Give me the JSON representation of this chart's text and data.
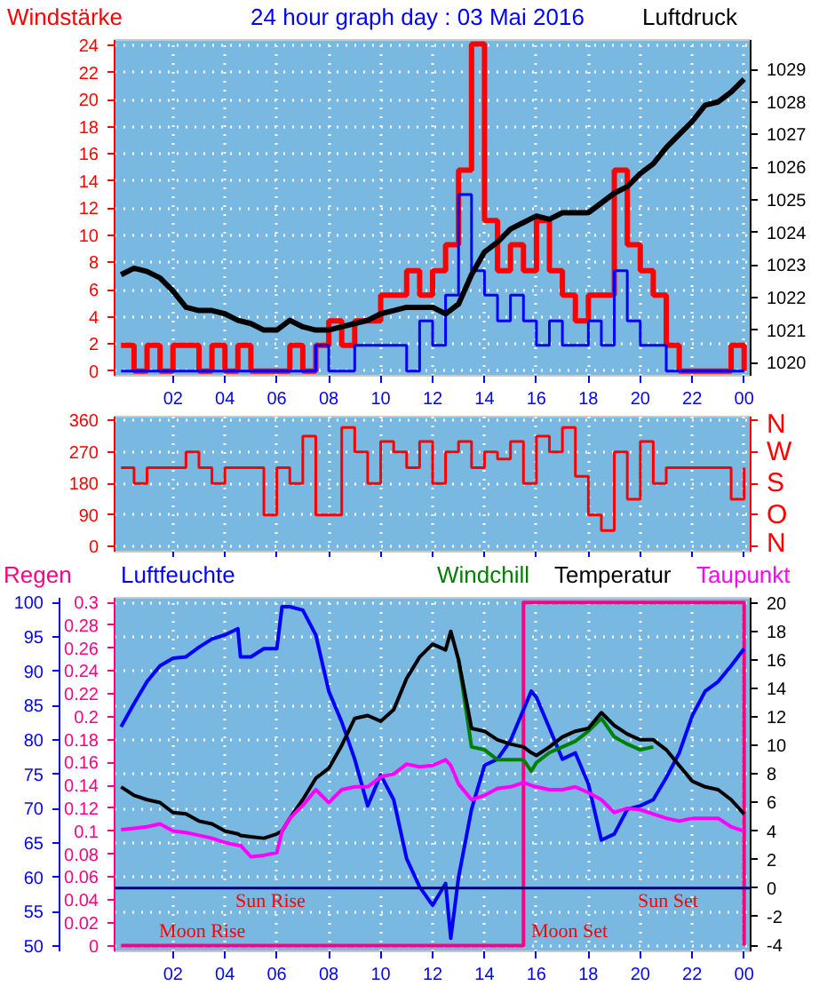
{
  "chart_data": [
    {
      "type": "step",
      "title": "24 hour graph day : 03 Mai 2016",
      "ylabel": "Windstärke",
      "y2label": "Luftdruck",
      "x": [
        "2016-05-03T00:00",
        "2016-05-03T00:30",
        "2016-05-03T01:00",
        "2016-05-03T01:30",
        "2016-05-03T02:00",
        "2016-05-03T02:30",
        "2016-05-03T03:00",
        "2016-05-03T03:30",
        "2016-05-03T04:00",
        "2016-05-03T04:30",
        "2016-05-03T05:00",
        "2016-05-03T05:30",
        "2016-05-03T06:00",
        "2016-05-03T06:30",
        "2016-05-03T07:00",
        "2016-05-03T07:30",
        "2016-05-03T08:00",
        "2016-05-03T08:30",
        "2016-05-03T09:00",
        "2016-05-03T09:30",
        "2016-05-03T10:00",
        "2016-05-03T10:30",
        "2016-05-03T11:00",
        "2016-05-03T11:30",
        "2016-05-03T12:00",
        "2016-05-03T12:30",
        "2016-05-03T13:00",
        "2016-05-03T13:30",
        "2016-05-03T14:00",
        "2016-05-03T14:30",
        "2016-05-03T15:00",
        "2016-05-03T15:30",
        "2016-05-03T16:00",
        "2016-05-03T16:30",
        "2016-05-03T17:00",
        "2016-05-03T17:30",
        "2016-05-03T18:00",
        "2016-05-03T18:30",
        "2016-05-03T19:00",
        "2016-05-03T19:30",
        "2016-05-03T20:00",
        "2016-05-03T20:30",
        "2016-05-03T21:00",
        "2016-05-03T21:30",
        "2016-05-03T22:00",
        "2016-05-03T22:30",
        "2016-05-03T23:00",
        "2016-05-03T23:30",
        "2016-05-04T00:00"
      ],
      "series": [
        {
          "color": "#ff0000",
          "values": [
            1.9,
            0,
            1.9,
            0,
            1.9,
            1.9,
            0,
            1.9,
            0,
            1.9,
            0,
            0,
            0,
            1.9,
            0,
            1.9,
            3.7,
            1.9,
            3.7,
            3.7,
            5.6,
            5.6,
            7.4,
            5.6,
            7.4,
            9.3,
            14.8,
            24.1,
            11.1,
            7.4,
            9.3,
            7.4,
            11.1,
            7.4,
            5.6,
            3.7,
            5.6,
            5.6,
            14.8,
            9.3,
            7.4,
            5.6,
            1.9,
            0,
            0,
            0,
            0,
            1.9,
            0
          ]
        },
        {
          "color": "#0000ff",
          "values": [
            0,
            0,
            0,
            0,
            0,
            0,
            0,
            0,
            0,
            0,
            0,
            0,
            0,
            0,
            0,
            1.9,
            0,
            0,
            1.9,
            1.9,
            1.9,
            1.9,
            0,
            3.7,
            1.9,
            5.6,
            13.0,
            7.4,
            5.6,
            3.7,
            5.6,
            3.7,
            1.9,
            3.7,
            1.9,
            1.9,
            3.7,
            1.9,
            7.4,
            3.7,
            1.9,
            1.9,
            0,
            0,
            0,
            0,
            0,
            0,
            0
          ]
        },
        {
          "type": "line",
          "axis": "y2",
          "color": "#000000",
          "values": [
            1022.7,
            1022.9,
            1022.8,
            1022.6,
            1022.2,
            1021.7,
            1021.6,
            1021.6,
            1021.5,
            1021.3,
            1021.2,
            1021.0,
            1021.0,
            1021.3,
            1021.1,
            1021.0,
            1021.0,
            1021.1,
            1021.2,
            1021.3,
            1021.5,
            1021.6,
            1021.7,
            1021.7,
            1021.7,
            1021.5,
            1021.8,
            1022.7,
            1023.4,
            1023.7,
            1024.1,
            1024.3,
            1024.5,
            1024.4,
            1024.6,
            1024.6,
            1024.6,
            1024.9,
            1025.2,
            1025.4,
            1025.8,
            1026.1,
            1026.6,
            1027.0,
            1027.4,
            1027.9,
            1028.0,
            1028.3,
            1028.7
          ]
        }
      ],
      "xlim": [
        "2016-05-02T23:45",
        "2016-05-04T00:15"
      ],
      "xticks": [
        {
          "value": "2016-05-03T02:00",
          "label": "02"
        },
        {
          "value": "2016-05-03T04:00",
          "label": "04"
        },
        {
          "value": "2016-05-03T06:00",
          "label": "06"
        },
        {
          "value": "2016-05-03T08:00",
          "label": "08"
        },
        {
          "value": "2016-05-03T10:00",
          "label": "10"
        },
        {
          "value": "2016-05-03T12:00",
          "label": "12"
        },
        {
          "value": "2016-05-03T14:00",
          "label": "14"
        },
        {
          "value": "2016-05-03T16:00",
          "label": "16"
        },
        {
          "value": "2016-05-03T18:00",
          "label": "18"
        },
        {
          "value": "2016-05-03T20:00",
          "label": "20"
        },
        {
          "value": "2016-05-03T22:00",
          "label": "22"
        },
        {
          "value": "2016-05-04T00:00",
          "label": "00"
        }
      ],
      "ylim": [
        -0.35,
        24.4
      ],
      "yticks": [
        0,
        2,
        4,
        6,
        8,
        10,
        12,
        14,
        16,
        18,
        20,
        22,
        24
      ],
      "y2lim": [
        1019.6,
        1029.9
      ],
      "y2ticks": [
        1020,
        1021,
        1022,
        1023,
        1024,
        1025,
        1026,
        1027,
        1028,
        1029
      ],
      "grid": true
    },
    {
      "type": "step",
      "x": [
        "2016-05-03T00:00",
        "2016-05-03T00:30",
        "2016-05-03T01:00",
        "2016-05-03T01:30",
        "2016-05-03T02:00",
        "2016-05-03T02:30",
        "2016-05-03T03:00",
        "2016-05-03T03:30",
        "2016-05-03T04:00",
        "2016-05-03T04:30",
        "2016-05-03T05:00",
        "2016-05-03T05:30",
        "2016-05-03T06:00",
        "2016-05-03T06:30",
        "2016-05-03T07:00",
        "2016-05-03T07:30",
        "2016-05-03T08:00",
        "2016-05-03T08:30",
        "2016-05-03T09:00",
        "2016-05-03T09:30",
        "2016-05-03T10:00",
        "2016-05-03T10:30",
        "2016-05-03T11:00",
        "2016-05-03T11:30",
        "2016-05-03T12:00",
        "2016-05-03T12:30",
        "2016-05-03T13:00",
        "2016-05-03T13:30",
        "2016-05-03T14:00",
        "2016-05-03T14:30",
        "2016-05-03T15:00",
        "2016-05-03T15:30",
        "2016-05-03T16:00",
        "2016-05-03T16:30",
        "2016-05-03T17:00",
        "2016-05-03T17:30",
        "2016-05-03T18:00",
        "2016-05-03T18:30",
        "2016-05-03T19:00",
        "2016-05-03T19:30",
        "2016-05-03T20:00",
        "2016-05-03T20:30",
        "2016-05-03T21:00",
        "2016-05-03T21:30",
        "2016-05-03T22:00",
        "2016-05-03T22:30",
        "2016-05-03T23:00",
        "2016-05-03T23:30",
        "2016-05-04T00:00"
      ],
      "series": [
        {
          "color": "#ff0000",
          "values": [
            225,
            180,
            225,
            225,
            225,
            270,
            225,
            180,
            225,
            225,
            225,
            90,
            225,
            180,
            315,
            90,
            90,
            340,
            270,
            180,
            300,
            270,
            225,
            300,
            180,
            270,
            300,
            225,
            270,
            250,
            300,
            180,
            315,
            270,
            340,
            200,
            90,
            45,
            270,
            135,
            300,
            180,
            225,
            225,
            225,
            225,
            225,
            135,
            225
          ]
        }
      ],
      "xlim": [
        "2016-05-02T23:45",
        "2016-05-04T00:15"
      ],
      "xticks": [
        {
          "value": "2016-05-03T02:00",
          "label": null
        },
        {
          "value": "2016-05-03T04:00",
          "label": null
        },
        {
          "value": "2016-05-03T06:00",
          "label": null
        },
        {
          "value": "2016-05-03T08:00",
          "label": null
        },
        {
          "value": "2016-05-03T10:00",
          "label": null
        },
        {
          "value": "2016-05-03T12:00",
          "label": null
        },
        {
          "value": "2016-05-03T14:00",
          "label": null
        },
        {
          "value": "2016-05-03T16:00",
          "label": null
        },
        {
          "value": "2016-05-03T18:00",
          "label": null
        },
        {
          "value": "2016-05-03T20:00",
          "label": null
        },
        {
          "value": "2016-05-03T22:00",
          "label": null
        },
        {
          "value": "2016-05-04T00:00",
          "label": null
        }
      ],
      "ylim": [
        -15,
        371
      ],
      "yticks": [
        0,
        90,
        180,
        270,
        360
      ],
      "annotations": [
        "N",
        "W",
        "S",
        "O",
        "N"
      ],
      "tick_labels": "y",
      "grid": true
    },
    {
      "type": "line",
      "legend": "top",
      "x": [
        "2016-05-03T00:00",
        "2016-05-03T00:30",
        "2016-05-03T01:00",
        "2016-05-03T01:30",
        "2016-05-03T02:00",
        "2016-05-03T02:30",
        "2016-05-03T03:00",
        "2016-05-03T03:30",
        "2016-05-03T04:00",
        "2016-05-03T04:30",
        "2016-05-03T04:36",
        "2016-05-03T05:00",
        "2016-05-03T05:30",
        "2016-05-03T06:00",
        "2016-05-03T06:12",
        "2016-05-03T06:30",
        "2016-05-03T07:00",
        "2016-05-03T07:30",
        "2016-05-03T08:00",
        "2016-05-03T08:30",
        "2016-05-03T09:00",
        "2016-05-03T09:30",
        "2016-05-03T10:00",
        "2016-05-03T10:30",
        "2016-05-03T11:00",
        "2016-05-03T11:30",
        "2016-05-03T12:00",
        "2016-05-03T12:30",
        "2016-05-03T12:42",
        "2016-05-03T13:00",
        "2016-05-03T13:30",
        "2016-05-03T14:00",
        "2016-05-03T14:30",
        "2016-05-03T15:00",
        "2016-05-03T15:30",
        "2016-05-03T15:48",
        "2016-05-03T16:00",
        "2016-05-03T16:30",
        "2016-05-03T17:00",
        "2016-05-03T17:30",
        "2016-05-03T18:00",
        "2016-05-03T18:30",
        "2016-05-03T19:00",
        "2016-05-03T19:30",
        "2016-05-03T20:00",
        "2016-05-03T20:30",
        "2016-05-03T21:00",
        "2016-05-03T21:30",
        "2016-05-03T22:00",
        "2016-05-03T22:30",
        "2016-05-03T23:00",
        "2016-05-03T23:30",
        "2016-05-04T00:00"
      ],
      "series": [
        {
          "name": "Regen",
          "axis": "y2",
          "color": "#ff0080",
          "x": [
            "2016-05-03T00:00",
            "2016-05-03T15:30",
            "2016-05-03T15:30",
            "2016-05-04T00:00",
            "2016-05-04T00:00"
          ],
          "values": [
            0,
            0,
            0.3,
            0.3,
            0
          ]
        },
        {
          "name": "Luftfeuchte",
          "color": "#0000ff",
          "values": [
            81.9,
            85.3,
            88.5,
            90.8,
            91.9,
            92.1,
            93.5,
            94.7,
            95.3,
            96.2,
            92.1,
            92.1,
            93.3,
            93.3,
            99.4,
            99.4,
            98.9,
            95.3,
            87.1,
            82.6,
            77.2,
            70.4,
            74.9,
            71.3,
            62.7,
            58.6,
            55.9,
            59.1,
            51.1,
            60.0,
            69.9,
            76.3,
            77.2,
            79.9,
            84.4,
            87.1,
            86.2,
            81.7,
            77.2,
            78.1,
            73.6,
            65.4,
            66.3,
            69.9,
            70.4,
            71.3,
            74.5,
            78.1,
            83.5,
            87.1,
            88.5,
            90.8,
            93.3
          ]
        },
        {
          "name": "Windchill",
          "axis": "y3",
          "color": "#008000",
          "values": [
            null,
            null,
            null,
            null,
            null,
            null,
            null,
            null,
            null,
            null,
            null,
            null,
            null,
            null,
            null,
            null,
            null,
            null,
            null,
            null,
            null,
            null,
            null,
            null,
            null,
            null,
            null,
            null,
            null,
            16.0,
            9.9,
            9.7,
            9.0,
            9.0,
            9.0,
            8.2,
            8.8,
            9.5,
            9.9,
            10.3,
            11.0,
            11.9,
            10.6,
            10.1,
            9.7,
            9.9,
            null,
            null,
            null,
            null,
            null,
            null,
            null
          ]
        },
        {
          "name": "Temperatur",
          "axis": "y3",
          "color": "#000000",
          "values": [
            7.1,
            6.5,
            6.2,
            6.0,
            5.3,
            5.2,
            4.7,
            4.5,
            4.0,
            3.8,
            3.7,
            3.6,
            3.5,
            3.8,
            4.0,
            4.9,
            6.2,
            7.7,
            8.4,
            10.0,
            11.9,
            12.1,
            11.7,
            12.5,
            14.7,
            16.2,
            17.1,
            16.7,
            18.0,
            16.0,
            11.2,
            11.0,
            10.4,
            10.1,
            9.9,
            9.5,
            9.3,
            9.9,
            10.6,
            11.0,
            11.2,
            12.3,
            11.4,
            10.8,
            10.4,
            10.4,
            9.7,
            8.6,
            7.5,
            7.1,
            6.9,
            6.2,
            5.2
          ]
        },
        {
          "name": "Taupunkt",
          "axis": "y3",
          "color": "#ff00ff",
          "values": [
            4.1,
            4.2,
            4.3,
            4.5,
            4.0,
            3.9,
            3.7,
            3.5,
            3.2,
            3.0,
            3.0,
            2.2,
            2.3,
            2.5,
            4.0,
            4.9,
            5.8,
            6.9,
            6.0,
            6.9,
            7.1,
            7.1,
            7.8,
            8.0,
            8.7,
            8.5,
            8.6,
            9.0,
            8.6,
            7.3,
            6.2,
            6.5,
            7.0,
            7.1,
            7.4,
            7.2,
            7.1,
            6.9,
            6.9,
            7.1,
            6.7,
            6.2,
            5.3,
            5.6,
            5.5,
            5.2,
            4.9,
            4.7,
            4.9,
            4.9,
            4.9,
            4.3,
            4.0
          ]
        }
      ],
      "xlim": [
        "2016-05-02T23:45",
        "2016-05-04T00:15"
      ],
      "xticks": [
        {
          "value": "2016-05-03T02:00",
          "label": "02"
        },
        {
          "value": "2016-05-03T04:00",
          "label": "04"
        },
        {
          "value": "2016-05-03T06:00",
          "label": "06"
        },
        {
          "value": "2016-05-03T08:00",
          "label": "08"
        },
        {
          "value": "2016-05-03T10:00",
          "label": "10"
        },
        {
          "value": "2016-05-03T12:00",
          "label": "12"
        },
        {
          "value": "2016-05-03T14:00",
          "label": "14"
        },
        {
          "value": "2016-05-03T16:00",
          "label": "16"
        },
        {
          "value": "2016-05-03T18:00",
          "label": "18"
        },
        {
          "value": "2016-05-03T20:00",
          "label": "20"
        },
        {
          "value": "2016-05-03T22:00",
          "label": "22"
        },
        {
          "value": "2016-05-04T00:00",
          "label": "00"
        }
      ],
      "ylim": [
        49.2,
        100.7
      ],
      "yticks": [
        50,
        55,
        60,
        65,
        70,
        75,
        80,
        85,
        90,
        95,
        100
      ],
      "y2lim": [
        -0.005,
        0.304
      ],
      "y2ticks": [
        0,
        0.02,
        0.04,
        0.06,
        0.08,
        0.1,
        0.12,
        0.14,
        0.16,
        0.18,
        0.2,
        0.22,
        0.24,
        0.26,
        0.28,
        0.3
      ],
      "y3lim": [
        -4.43,
        20.35
      ],
      "y3ticks": [
        -4,
        -2,
        0,
        2,
        4,
        6,
        8,
        10,
        12,
        14,
        16,
        18,
        20
      ],
      "ref_lines": [
        {
          "axis": "y3",
          "value": 0,
          "color": "#000080"
        }
      ],
      "annotations": [
        "Sun Rise",
        "Moon Rise",
        "Moon Set",
        "Sun Set"
      ],
      "grid": true
    }
  ]
}
